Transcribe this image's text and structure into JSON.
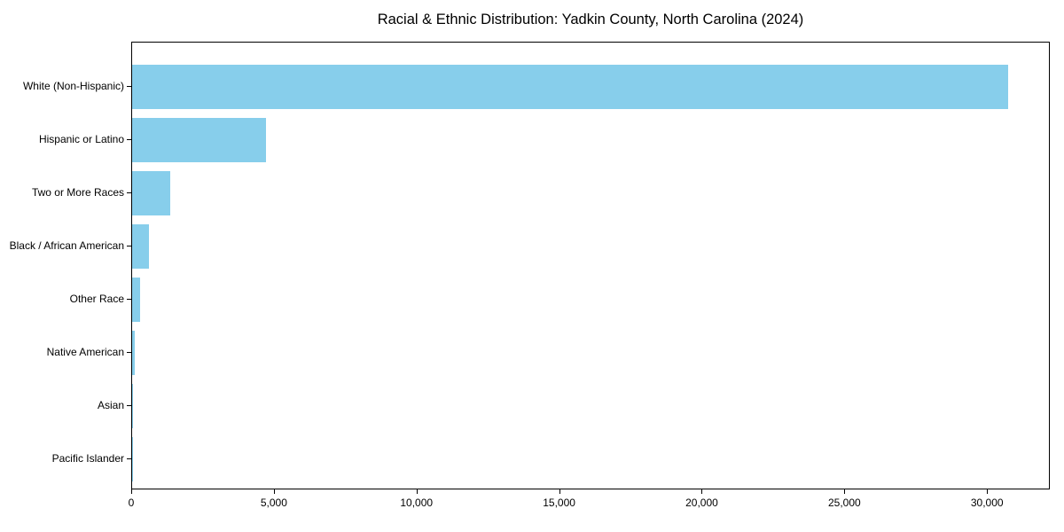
{
  "title": "Racial & Ethnic Distribution: Yadkin County, North Carolina (2024)",
  "chart_data": {
    "type": "bar",
    "orientation": "horizontal",
    "title": "Racial & Ethnic Distribution: Yadkin County, North Carolina (2024)",
    "categories": [
      "White (Non-Hispanic)",
      "Hispanic or Latino",
      "Two or More Races",
      "Black / African American",
      "Other Race",
      "Native American",
      "Asian",
      "Pacific Islander"
    ],
    "values": [
      30700,
      4690,
      1330,
      600,
      270,
      80,
      40,
      10
    ],
    "xlabel": "",
    "ylabel": "",
    "xlim": [
      0,
      32200
    ],
    "x_ticks": [
      0,
      5000,
      10000,
      15000,
      20000,
      25000,
      30000
    ],
    "x_tick_labels": [
      "0",
      "5,000",
      "10,000",
      "15,000",
      "20,000",
      "25,000",
      "30,000"
    ],
    "bar_color": "#87CEEB",
    "grid": false,
    "legend": "none",
    "categories_order": "largest value at top"
  }
}
